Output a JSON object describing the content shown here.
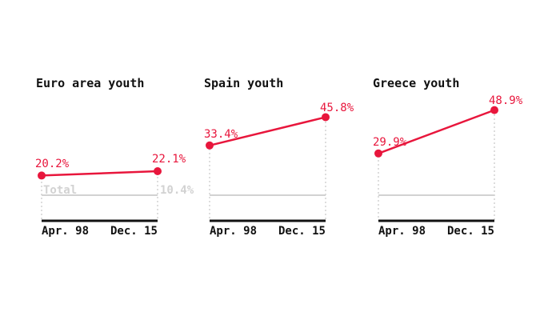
{
  "colors": {
    "series": "#e8163c",
    "total": "#d2d2d2",
    "baseline": "#111111",
    "guide": "#bbbbbb"
  },
  "chart_data": [
    {
      "type": "line",
      "title": "Euro area youth",
      "categories": [
        "Apr. 98",
        "Dec. 15"
      ],
      "series": [
        {
          "name": "",
          "values": [
            20.2,
            22.1
          ],
          "labels": [
            "20.2%",
            "22.1%"
          ]
        },
        {
          "name": "Total",
          "values": [
            10.4,
            10.4
          ],
          "labels": [
            "10.4%"
          ]
        }
      ],
      "ylim": [
        0,
        50
      ]
    },
    {
      "type": "line",
      "title": "Spain youth",
      "categories": [
        "Apr. 98",
        "Dec. 15"
      ],
      "series": [
        {
          "name": "",
          "values": [
            33.4,
            45.8
          ],
          "labels": [
            "33.4%",
            "45.8%"
          ]
        }
      ],
      "ylim": [
        0,
        50
      ]
    },
    {
      "type": "line",
      "title": "Greece youth",
      "categories": [
        "Apr. 98",
        "Dec. 15"
      ],
      "series": [
        {
          "name": "",
          "values": [
            29.9,
            48.9
          ],
          "labels": [
            "29.9%",
            "48.9%"
          ]
        }
      ],
      "ylim": [
        0,
        50
      ]
    }
  ]
}
